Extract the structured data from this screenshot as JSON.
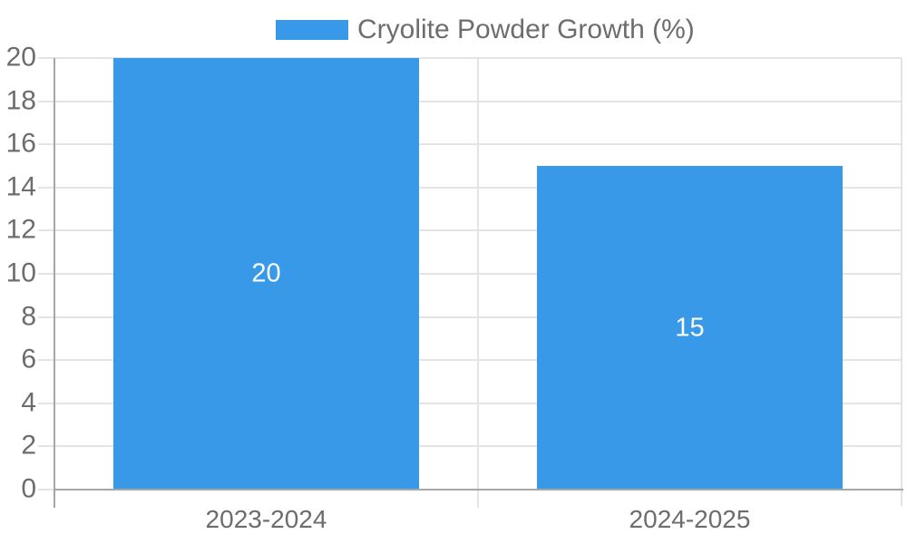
{
  "chart_data": {
    "type": "bar",
    "title": "",
    "categories": [
      "2023-2024",
      "2024-2025"
    ],
    "series": [
      {
        "name": "Cryolite Powder Growth (%)",
        "values": [
          20,
          15
        ]
      }
    ],
    "yticks": [
      0,
      2,
      4,
      6,
      8,
      10,
      12,
      14,
      16,
      18,
      20
    ],
    "ylim": [
      0,
      20
    ],
    "grid": true,
    "legend_position": "top",
    "bar_value_labels": [
      "20",
      "15"
    ]
  },
  "colors": {
    "bar": "#3899E8",
    "grid": "#E4E4E4",
    "axis": "#A6A6A6",
    "tick_text": "#6D6D6D",
    "bar_label_text": "#FFFFFF",
    "background": "#FFFFFF"
  }
}
